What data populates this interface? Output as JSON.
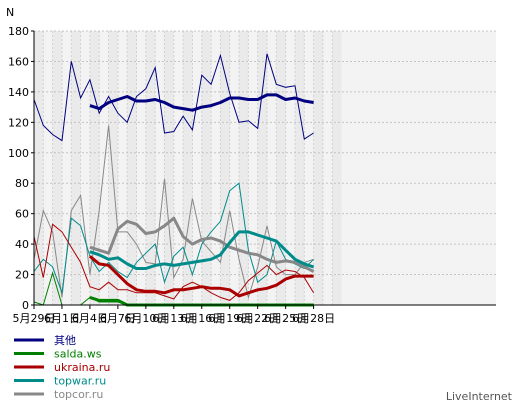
{
  "chart_data": {
    "type": "line",
    "ylabel": "N",
    "ylim": [
      0,
      180
    ],
    "yticks": [
      0,
      20,
      40,
      60,
      80,
      100,
      120,
      140,
      160,
      180
    ],
    "grid": true,
    "legend_position": "bottom-left",
    "x_count": 33,
    "x_tick_labels": [
      {
        "index": 0,
        "label": "5月29日"
      },
      {
        "index": 3,
        "label": "6月1日"
      },
      {
        "index": 6,
        "label": "6月4日"
      },
      {
        "index": 9,
        "label": "6月7日"
      },
      {
        "index": 12,
        "label": "6月10日"
      },
      {
        "index": 15,
        "label": "6月13日"
      },
      {
        "index": 18,
        "label": "6月16日"
      },
      {
        "index": 21,
        "label": "6月19日"
      },
      {
        "index": 24,
        "label": "6月22日"
      },
      {
        "index": 27,
        "label": "6月25日"
      },
      {
        "index": 30,
        "label": "6月28日"
      }
    ],
    "series": [
      {
        "name": "其他",
        "color": "#000080",
        "values": [
          135,
          118,
          112,
          108,
          160,
          136,
          148,
          126,
          137,
          126,
          120,
          137,
          142,
          156,
          113,
          114,
          124,
          115,
          151,
          145,
          164,
          139,
          120,
          121,
          116,
          165,
          145,
          143,
          144,
          109,
          113,
          null,
          null
        ],
        "average": [
          null,
          null,
          null,
          null,
          null,
          null,
          131,
          129,
          133,
          135,
          137,
          134,
          134,
          135,
          133,
          130,
          129,
          128,
          130,
          131,
          133,
          136,
          136,
          135,
          135,
          138,
          138,
          135,
          136,
          134,
          133,
          null,
          null
        ]
      },
      {
        "name": "salda.ws",
        "color": "#008000",
        "values": [
          2,
          0,
          21,
          0,
          0,
          0,
          5,
          2,
          2,
          2,
          0,
          0,
          0,
          0,
          0,
          0,
          0,
          0,
          0,
          0,
          0,
          0,
          0,
          0,
          0,
          0,
          0,
          0,
          0,
          0,
          0,
          null,
          null
        ],
        "average": [
          null,
          null,
          null,
          null,
          null,
          null,
          5,
          3,
          3,
          3,
          0,
          0,
          0,
          0,
          0,
          0,
          0,
          0,
          0,
          0,
          0,
          0,
          0,
          0,
          0,
          0,
          0,
          0,
          0,
          0,
          0,
          null,
          null
        ]
      },
      {
        "name": "ukraina.ru",
        "color": "#aa0000",
        "values": [
          45,
          18,
          53,
          48,
          38,
          28,
          12,
          10,
          15,
          10,
          10,
          8,
          8,
          8,
          6,
          4,
          12,
          15,
          12,
          8,
          5,
          3,
          8,
          16,
          21,
          26,
          20,
          23,
          22,
          18,
          8,
          null,
          null
        ],
        "average": [
          null,
          null,
          null,
          null,
          null,
          null,
          32,
          27,
          26,
          20,
          14,
          10,
          9,
          9,
          8,
          10,
          10,
          11,
          12,
          11,
          11,
          10,
          6,
          8,
          10,
          11,
          13,
          17,
          19,
          19,
          19,
          null,
          null
        ]
      },
      {
        "name": "topwar.ru",
        "color": "#008b8b",
        "values": [
          22,
          30,
          25,
          8,
          57,
          52,
          32,
          22,
          28,
          22,
          18,
          28,
          34,
          40,
          15,
          32,
          38,
          20,
          40,
          48,
          55,
          75,
          80,
          36,
          15,
          20,
          42,
          30,
          27,
          24,
          30,
          null,
          null
        ],
        "average": [
          null,
          null,
          null,
          null,
          null,
          null,
          35,
          33,
          30,
          31,
          27,
          24,
          24,
          26,
          27,
          26,
          27,
          28,
          29,
          30,
          33,
          41,
          48,
          48,
          46,
          44,
          42,
          36,
          30,
          27,
          25,
          null,
          null
        ]
      },
      {
        "name": "topcor.ru",
        "color": "#888888",
        "values": [
          30,
          62,
          48,
          5,
          62,
          72,
          20,
          62,
          118,
          48,
          48,
          40,
          28,
          27,
          83,
          18,
          30,
          70,
          42,
          35,
          28,
          62,
          30,
          5,
          25,
          52,
          25,
          20,
          20,
          28,
          30,
          null,
          null
        ],
        "average": [
          null,
          null,
          null,
          null,
          null,
          null,
          38,
          36,
          34,
          50,
          55,
          53,
          47,
          48,
          52,
          57,
          45,
          40,
          43,
          44,
          42,
          38,
          36,
          34,
          33,
          30,
          28,
          29,
          28,
          25,
          22,
          null,
          null
        ]
      }
    ]
  },
  "legend": {
    "items": [
      {
        "label": "其他",
        "color": "#000080"
      },
      {
        "label": "salda.ws",
        "color": "#008000"
      },
      {
        "label": "ukraina.ru",
        "color": "#aa0000"
      },
      {
        "label": "topwar.ru",
        "color": "#008b8b"
      },
      {
        "label": "topcor.ru",
        "color": "#888888"
      }
    ]
  },
  "brand": {
    "text": "LiveInternet"
  }
}
